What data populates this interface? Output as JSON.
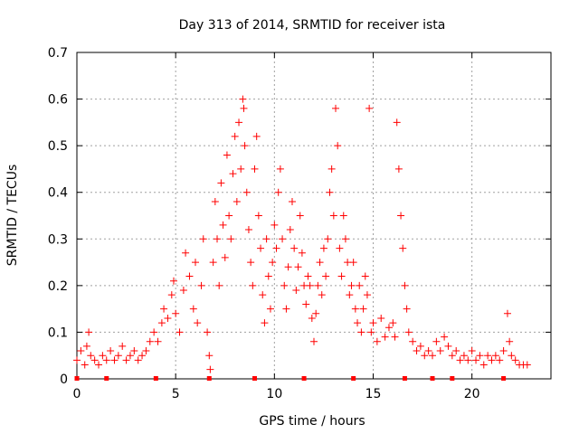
{
  "chart_data": {
    "type": "scatter",
    "title": "Day 313 of 2014, SRMTID for receiver ista",
    "xlabel": "GPS time / hours",
    "ylabel": "SRMTID / TECUs",
    "xlim": [
      0,
      24
    ],
    "ylim": [
      0,
      0.7
    ],
    "xticks": [
      0,
      5,
      10,
      15,
      20
    ],
    "yticks": [
      0,
      0.1,
      0.2,
      0.3,
      0.4,
      0.5,
      0.6,
      0.7
    ],
    "xtick_labels": [
      "0",
      "5",
      "10",
      "15",
      "20"
    ],
    "ytick_labels": [
      "0",
      "0.1",
      "0.2",
      "0.3",
      "0.4",
      "0.5",
      "0.6",
      "0.7"
    ],
    "grid": true,
    "marker": "+",
    "color": "#ff0000",
    "series": [
      {
        "name": "SRMTID",
        "points": [
          [
            0.0,
            0.04
          ],
          [
            0.2,
            0.06
          ],
          [
            0.4,
            0.03
          ],
          [
            0.5,
            0.07
          ],
          [
            0.6,
            0.1
          ],
          [
            0.7,
            0.05
          ],
          [
            0.9,
            0.04
          ],
          [
            1.1,
            0.03
          ],
          [
            1.3,
            0.05
          ],
          [
            1.5,
            0.04
          ],
          [
            1.7,
            0.06
          ],
          [
            1.9,
            0.04
          ],
          [
            2.1,
            0.05
          ],
          [
            2.3,
            0.07
          ],
          [
            2.5,
            0.04
          ],
          [
            2.7,
            0.05
          ],
          [
            2.9,
            0.06
          ],
          [
            3.1,
            0.04
          ],
          [
            3.3,
            0.05
          ],
          [
            3.5,
            0.06
          ],
          [
            3.7,
            0.08
          ],
          [
            3.9,
            0.1
          ],
          [
            4.1,
            0.08
          ],
          [
            4.3,
            0.12
          ],
          [
            4.4,
            0.15
          ],
          [
            4.6,
            0.13
          ],
          [
            4.8,
            0.18
          ],
          [
            4.9,
            0.21
          ],
          [
            5.0,
            0.14
          ],
          [
            5.2,
            0.1
          ],
          [
            5.4,
            0.19
          ],
          [
            5.5,
            0.27
          ],
          [
            5.7,
            0.22
          ],
          [
            5.9,
            0.15
          ],
          [
            6.0,
            0.25
          ],
          [
            6.1,
            0.12
          ],
          [
            6.3,
            0.2
          ],
          [
            6.4,
            0.3
          ],
          [
            6.6,
            0.1
          ],
          [
            6.7,
            0.05
          ],
          [
            6.75,
            0.02
          ],
          [
            6.9,
            0.25
          ],
          [
            7.0,
            0.38
          ],
          [
            7.1,
            0.3
          ],
          [
            7.2,
            0.2
          ],
          [
            7.3,
            0.42
          ],
          [
            7.4,
            0.33
          ],
          [
            7.5,
            0.26
          ],
          [
            7.6,
            0.48
          ],
          [
            7.7,
            0.35
          ],
          [
            7.8,
            0.3
          ],
          [
            7.9,
            0.44
          ],
          [
            8.0,
            0.52
          ],
          [
            8.1,
            0.38
          ],
          [
            8.2,
            0.55
          ],
          [
            8.3,
            0.45
          ],
          [
            8.4,
            0.6
          ],
          [
            8.45,
            0.58
          ],
          [
            8.5,
            0.5
          ],
          [
            8.6,
            0.4
          ],
          [
            8.7,
            0.32
          ],
          [
            8.8,
            0.25
          ],
          [
            8.9,
            0.2
          ],
          [
            9.0,
            0.45
          ],
          [
            9.1,
            0.52
          ],
          [
            9.2,
            0.35
          ],
          [
            9.3,
            0.28
          ],
          [
            9.4,
            0.18
          ],
          [
            9.5,
            0.12
          ],
          [
            9.6,
            0.3
          ],
          [
            9.7,
            0.22
          ],
          [
            9.8,
            0.15
          ],
          [
            9.9,
            0.25
          ],
          [
            10.0,
            0.33
          ],
          [
            10.1,
            0.28
          ],
          [
            10.2,
            0.4
          ],
          [
            10.3,
            0.45
          ],
          [
            10.4,
            0.3
          ],
          [
            10.5,
            0.2
          ],
          [
            10.6,
            0.15
          ],
          [
            10.7,
            0.24
          ],
          [
            10.8,
            0.32
          ],
          [
            10.9,
            0.38
          ],
          [
            11.0,
            0.28
          ],
          [
            11.1,
            0.19
          ],
          [
            11.2,
            0.24
          ],
          [
            11.3,
            0.35
          ],
          [
            11.4,
            0.27
          ],
          [
            11.5,
            0.2
          ],
          [
            11.6,
            0.16
          ],
          [
            11.7,
            0.22
          ],
          [
            11.8,
            0.2
          ],
          [
            11.9,
            0.13
          ],
          [
            12.0,
            0.08
          ],
          [
            12.1,
            0.14
          ],
          [
            12.2,
            0.2
          ],
          [
            12.3,
            0.25
          ],
          [
            12.4,
            0.18
          ],
          [
            12.5,
            0.28
          ],
          [
            12.6,
            0.22
          ],
          [
            12.7,
            0.3
          ],
          [
            12.8,
            0.4
          ],
          [
            12.9,
            0.45
          ],
          [
            13.0,
            0.35
          ],
          [
            13.1,
            0.58
          ],
          [
            13.2,
            0.5
          ],
          [
            13.3,
            0.28
          ],
          [
            13.4,
            0.22
          ],
          [
            13.5,
            0.35
          ],
          [
            13.6,
            0.3
          ],
          [
            13.7,
            0.25
          ],
          [
            13.8,
            0.18
          ],
          [
            13.9,
            0.2
          ],
          [
            14.0,
            0.25
          ],
          [
            14.1,
            0.15
          ],
          [
            14.2,
            0.12
          ],
          [
            14.3,
            0.2
          ],
          [
            14.4,
            0.1
          ],
          [
            14.5,
            0.15
          ],
          [
            14.6,
            0.22
          ],
          [
            14.7,
            0.18
          ],
          [
            14.8,
            0.58
          ],
          [
            14.9,
            0.1
          ],
          [
            15.0,
            0.12
          ],
          [
            15.2,
            0.08
          ],
          [
            15.4,
            0.13
          ],
          [
            15.6,
            0.09
          ],
          [
            15.8,
            0.11
          ],
          [
            16.0,
            0.12
          ],
          [
            16.1,
            0.09
          ],
          [
            16.2,
            0.55
          ],
          [
            16.3,
            0.45
          ],
          [
            16.4,
            0.35
          ],
          [
            16.5,
            0.28
          ],
          [
            16.6,
            0.2
          ],
          [
            16.7,
            0.15
          ],
          [
            16.8,
            0.1
          ],
          [
            17.0,
            0.08
          ],
          [
            17.2,
            0.06
          ],
          [
            17.4,
            0.07
          ],
          [
            17.6,
            0.05
          ],
          [
            17.8,
            0.06
          ],
          [
            18.0,
            0.05
          ],
          [
            18.2,
            0.08
          ],
          [
            18.4,
            0.06
          ],
          [
            18.6,
            0.09
          ],
          [
            18.8,
            0.07
          ],
          [
            19.0,
            0.05
          ],
          [
            19.2,
            0.06
          ],
          [
            19.4,
            0.04
          ],
          [
            19.6,
            0.05
          ],
          [
            19.8,
            0.04
          ],
          [
            20.0,
            0.06
          ],
          [
            20.2,
            0.04
          ],
          [
            20.4,
            0.05
          ],
          [
            20.6,
            0.03
          ],
          [
            20.8,
            0.05
          ],
          [
            21.0,
            0.04
          ],
          [
            21.2,
            0.05
          ],
          [
            21.4,
            0.04
          ],
          [
            21.6,
            0.06
          ],
          [
            21.8,
            0.14
          ],
          [
            21.9,
            0.08
          ],
          [
            22.0,
            0.05
          ],
          [
            22.2,
            0.04
          ],
          [
            22.4,
            0.03
          ],
          [
            22.6,
            0.03
          ],
          [
            22.8,
            0.03
          ]
        ]
      }
    ],
    "baseline_markers": [
      0.0,
      1.5,
      4.0,
      6.7,
      9.0,
      11.5,
      14.0,
      16.6,
      18.0,
      19.0,
      21.6
    ]
  }
}
